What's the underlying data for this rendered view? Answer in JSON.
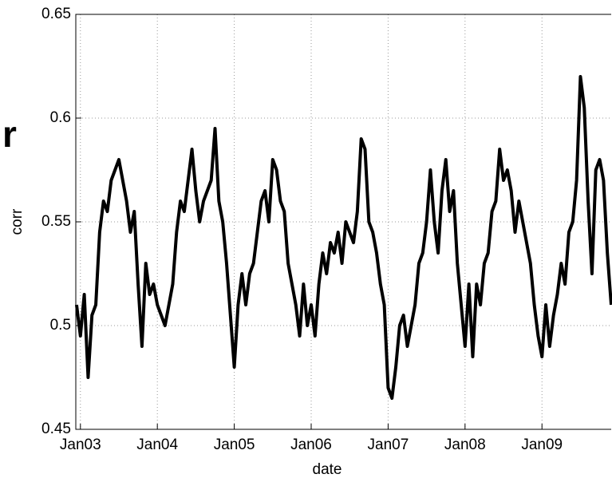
{
  "chart_data": {
    "type": "line",
    "annotation": "r",
    "x_label": "date",
    "y_label": "corr",
    "xlim": [
      2002.94,
      2009.9
    ],
    "ylim": [
      0.45,
      0.65
    ],
    "xticks": [
      {
        "value": 2003,
        "label": "Jan03"
      },
      {
        "value": 2004,
        "label": "Jan04"
      },
      {
        "value": 2005,
        "label": "Jan05"
      },
      {
        "value": 2006,
        "label": "Jan06"
      },
      {
        "value": 2007,
        "label": "Jan07"
      },
      {
        "value": 2008,
        "label": "Jan08"
      },
      {
        "value": 2009,
        "label": "Jan09"
      }
    ],
    "yticks": [
      0.45,
      0.5,
      0.55,
      0.6,
      0.65
    ],
    "grid": true,
    "x": [
      2002.95,
      2003.0,
      2003.05,
      2003.1,
      2003.15,
      2003.2,
      2003.25,
      2003.3,
      2003.35,
      2003.4,
      2003.45,
      2003.5,
      2003.55,
      2003.6,
      2003.65,
      2003.7,
      2003.75,
      2003.8,
      2003.85,
      2003.9,
      2003.95,
      2004.0,
      2004.05,
      2004.1,
      2004.15,
      2004.2,
      2004.25,
      2004.3,
      2004.35,
      2004.4,
      2004.45,
      2004.5,
      2004.55,
      2004.6,
      2004.65,
      2004.7,
      2004.75,
      2004.8,
      2004.85,
      2004.9,
      2004.95,
      2005.0,
      2005.05,
      2005.1,
      2005.15,
      2005.2,
      2005.25,
      2005.3,
      2005.35,
      2005.4,
      2005.45,
      2005.5,
      2005.55,
      2005.6,
      2005.65,
      2005.7,
      2005.75,
      2005.8,
      2005.85,
      2005.9,
      2005.95,
      2006.0,
      2006.05,
      2006.1,
      2006.15,
      2006.2,
      2006.25,
      2006.3,
      2006.35,
      2006.4,
      2006.45,
      2006.5,
      2006.55,
      2006.6,
      2006.65,
      2006.7,
      2006.75,
      2006.8,
      2006.85,
      2006.9,
      2006.95,
      2007.0,
      2007.05,
      2007.1,
      2007.15,
      2007.2,
      2007.25,
      2007.3,
      2007.35,
      2007.4,
      2007.45,
      2007.5,
      2007.55,
      2007.6,
      2007.65,
      2007.7,
      2007.75,
      2007.8,
      2007.85,
      2007.9,
      2007.95,
      2008.0,
      2008.05,
      2008.1,
      2008.15,
      2008.2,
      2008.25,
      2008.3,
      2008.35,
      2008.4,
      2008.45,
      2008.5,
      2008.55,
      2008.6,
      2008.65,
      2008.7,
      2008.75,
      2008.8,
      2008.85,
      2008.9,
      2008.95,
      2009.0,
      2009.05,
      2009.1,
      2009.15,
      2009.2,
      2009.25,
      2009.3,
      2009.35,
      2009.4,
      2009.45,
      2009.5,
      2009.55,
      2009.6,
      2009.65,
      2009.7,
      2009.75,
      2009.8,
      2009.85,
      2009.9
    ],
    "series": [
      {
        "color": "#000000",
        "values": [
          0.51,
          0.495,
          0.515,
          0.475,
          0.505,
          0.51,
          0.545,
          0.56,
          0.555,
          0.57,
          0.575,
          0.58,
          0.57,
          0.56,
          0.545,
          0.555,
          0.52,
          0.49,
          0.53,
          0.515,
          0.52,
          0.51,
          0.505,
          0.5,
          0.51,
          0.52,
          0.545,
          0.56,
          0.555,
          0.57,
          0.585,
          0.565,
          0.55,
          0.56,
          0.565,
          0.57,
          0.595,
          0.56,
          0.55,
          0.53,
          0.505,
          0.48,
          0.51,
          0.525,
          0.51,
          0.525,
          0.53,
          0.545,
          0.56,
          0.565,
          0.55,
          0.58,
          0.575,
          0.56,
          0.555,
          0.53,
          0.52,
          0.51,
          0.495,
          0.52,
          0.5,
          0.51,
          0.495,
          0.52,
          0.535,
          0.525,
          0.54,
          0.535,
          0.545,
          0.53,
          0.55,
          0.545,
          0.54,
          0.555,
          0.59,
          0.585,
          0.55,
          0.545,
          0.535,
          0.52,
          0.51,
          0.47,
          0.465,
          0.48,
          0.5,
          0.505,
          0.49,
          0.5,
          0.51,
          0.53,
          0.535,
          0.55,
          0.575,
          0.55,
          0.535,
          0.565,
          0.58,
          0.555,
          0.565,
          0.53,
          0.51,
          0.49,
          0.52,
          0.485,
          0.52,
          0.51,
          0.53,
          0.535,
          0.555,
          0.56,
          0.585,
          0.57,
          0.575,
          0.565,
          0.545,
          0.56,
          0.55,
          0.54,
          0.53,
          0.51,
          0.495,
          0.485,
          0.51,
          0.49,
          0.505,
          0.515,
          0.53,
          0.52,
          0.545,
          0.55,
          0.57,
          0.62,
          0.605,
          0.56,
          0.525,
          0.575,
          0.58,
          0.57,
          0.535,
          0.51
        ]
      }
    ]
  }
}
